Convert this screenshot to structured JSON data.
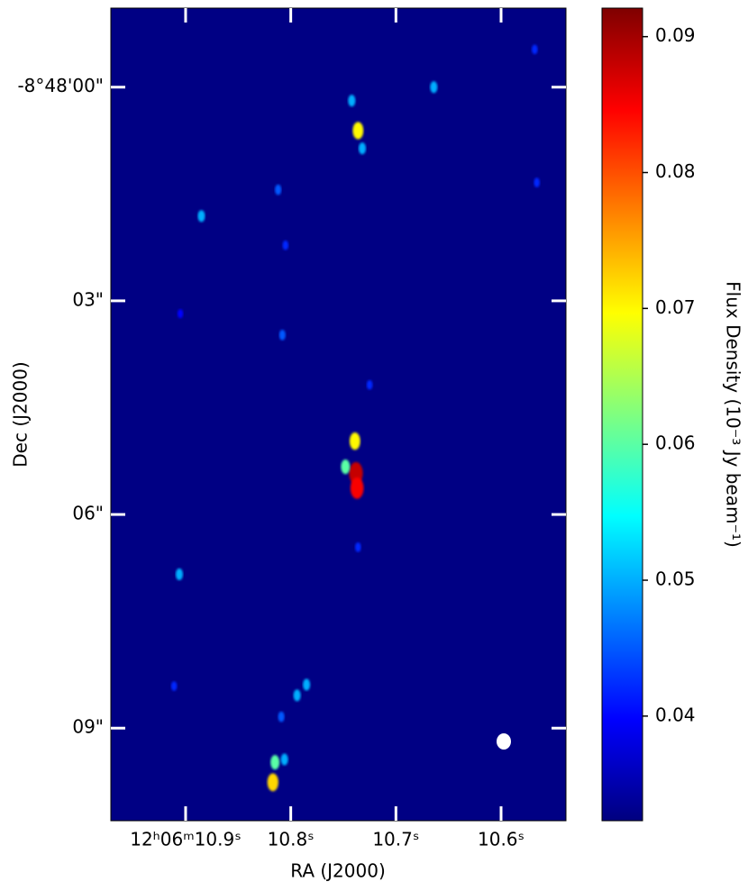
{
  "chart_data": {
    "type": "sky-map",
    "xlabel": "RA (J2000)",
    "ylabel": "Dec (J2000)",
    "colorbar_label": "Flux Density (10⁻³ Jy beam⁻¹)",
    "colormap": "jet",
    "xlim": [
      10.9711,
      10.5383
    ],
    "xticks": [
      {
        "value": 10.9,
        "label": "12ʰ06ᵐ10.9ˢ"
      },
      {
        "value": 10.8,
        "label": "10.8ˢ"
      },
      {
        "value": 10.7,
        "label": "10.7ˢ"
      },
      {
        "value": 10.6,
        "label": "10.6ˢ"
      }
    ],
    "ylim": [
      10.3,
      -1.11
    ],
    "yticks": [
      {
        "value": 0,
        "label": "-8°48'00\""
      },
      {
        "value": 3,
        "label": "03\""
      },
      {
        "value": 6,
        "label": "06\""
      },
      {
        "value": 9,
        "label": "09\""
      }
    ],
    "zlim": [
      0.0323,
      0.0921
    ],
    "zticks": [
      0.04,
      0.05,
      0.06,
      0.07,
      0.08,
      0.09
    ],
    "x": [
      10.742,
      10.736,
      10.732,
      10.739,
      10.738,
      10.737,
      10.748,
      10.817,
      10.815,
      10.806,
      10.785,
      10.794,
      10.809,
      10.664,
      10.885,
      10.812,
      10.906,
      10.808,
      10.566,
      10.568,
      10.725,
      10.805,
      10.905,
      10.736,
      10.911
    ],
    "y": [
      0.19,
      0.61,
      0.86,
      4.97,
      5.42,
      5.63,
      5.33,
      9.76,
      9.48,
      9.44,
      8.39,
      8.54,
      8.84,
      0.0,
      1.81,
      1.44,
      6.84,
      3.48,
      1.34,
      -0.53,
      4.18,
      2.22,
      3.18,
      6.46,
      8.41
    ],
    "values": [
      0.05,
      0.07,
      0.05,
      0.07,
      0.088,
      0.085,
      0.06,
      0.072,
      0.06,
      0.05,
      0.05,
      0.05,
      0.045,
      0.05,
      0.05,
      0.045,
      0.05,
      0.045,
      0.042,
      0.042,
      0.042,
      0.042,
      0.04,
      0.042,
      0.042
    ]
  }
}
